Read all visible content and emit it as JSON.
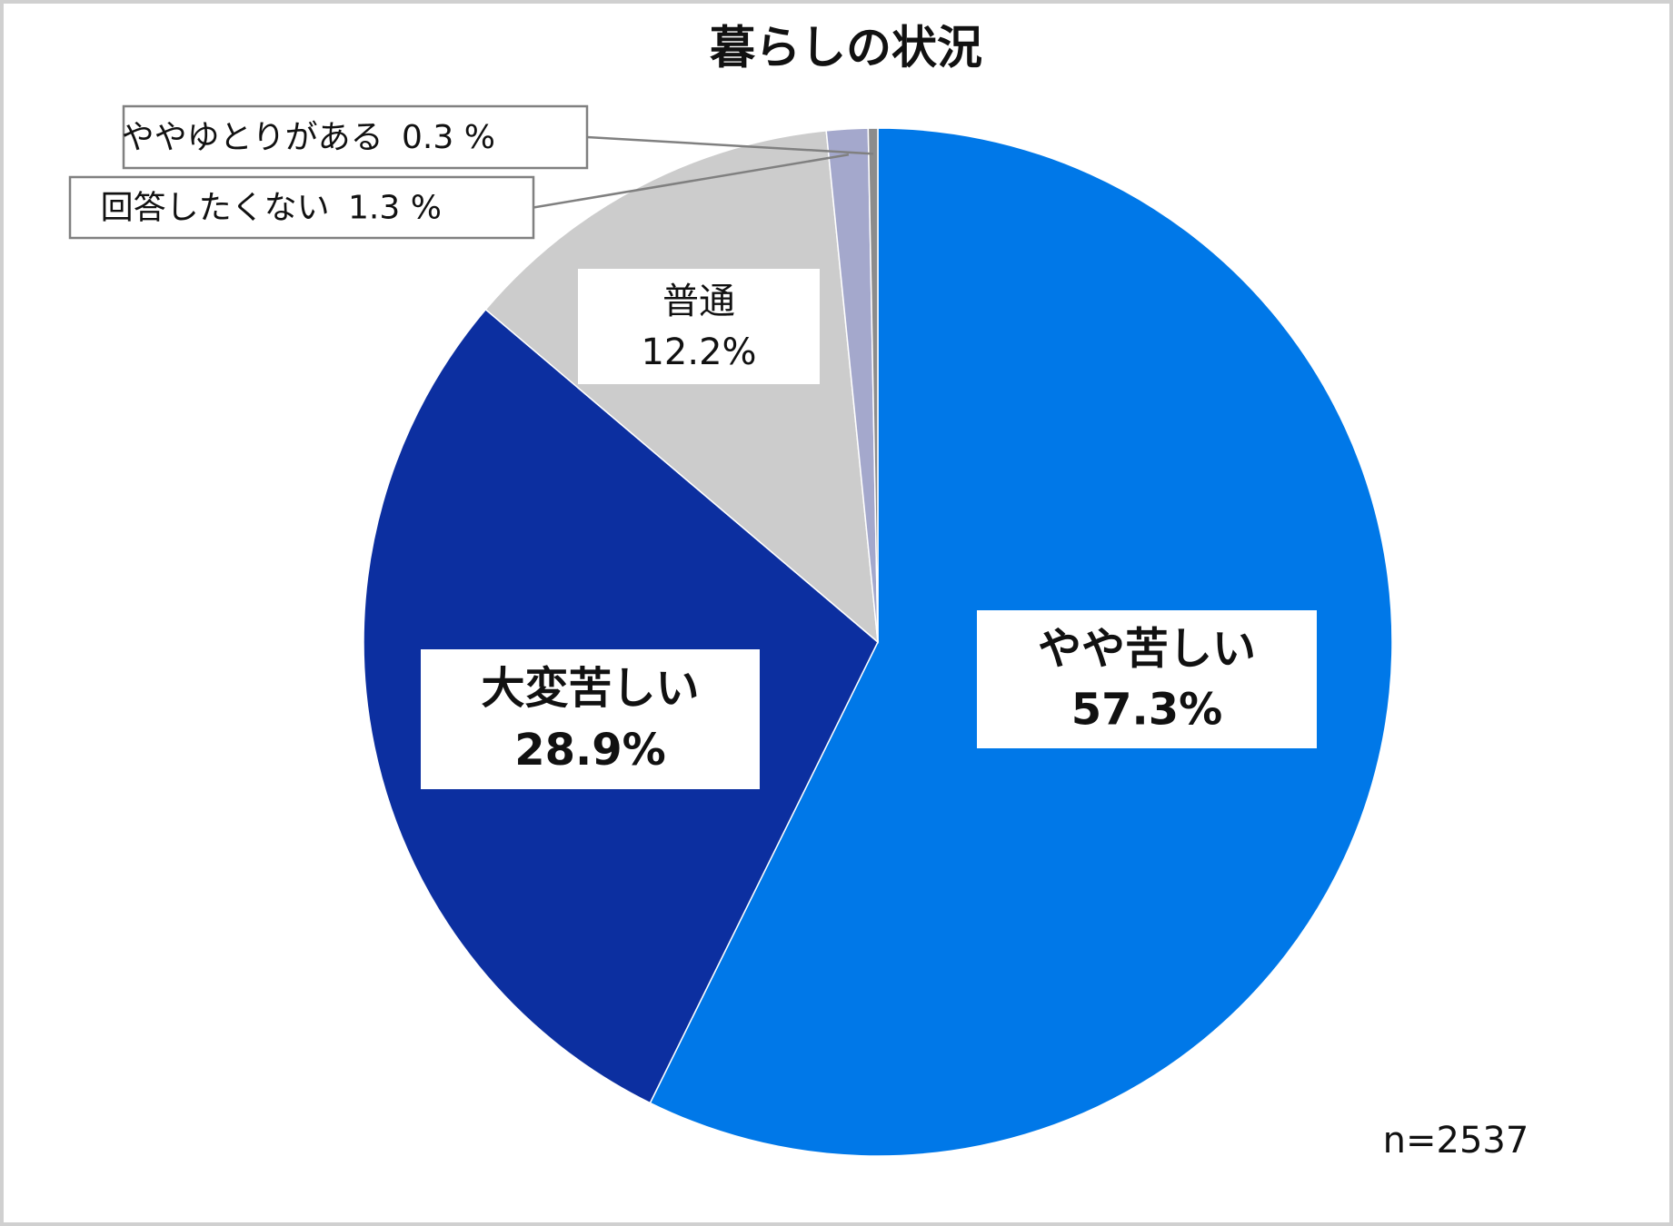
{
  "chart_data": {
    "type": "pie",
    "title": "暮らしの状況",
    "categories": [
      "やや苦しい",
      "大変苦しい",
      "普通",
      "回答したくない",
      "ややゆとりがある"
    ],
    "values": [
      57.3,
      28.9,
      12.2,
      1.3,
      0.3
    ],
    "value_labels": [
      "57.3%",
      "28.9%",
      "12.2%",
      "1.3 %",
      "0.3 %"
    ],
    "colors": [
      "#0078e8",
      "#0c2fa0",
      "#cccccc",
      "#a4a8cc",
      "#8c8c8c"
    ],
    "annotation": "n=2537"
  }
}
